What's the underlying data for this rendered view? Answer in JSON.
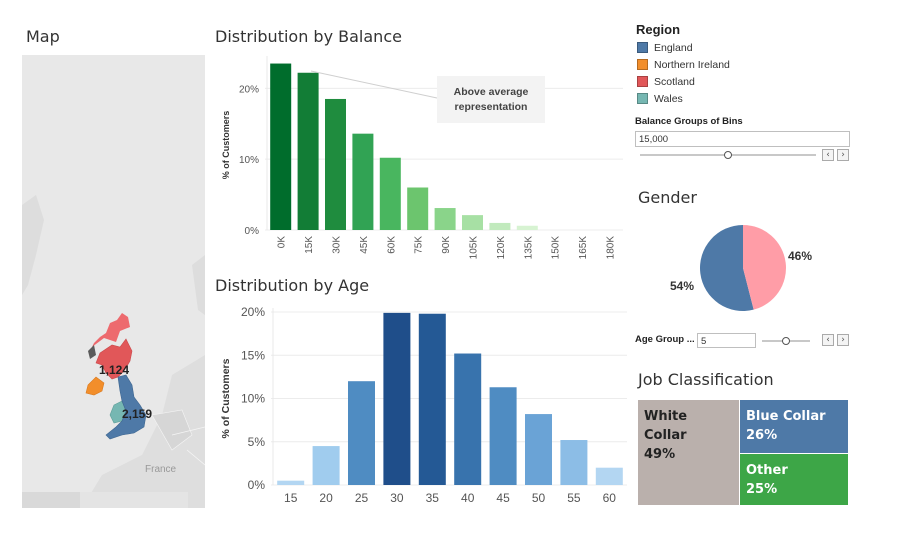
{
  "map": {
    "title": "Map",
    "country_label": "France",
    "labels": {
      "scotland": "1,124",
      "england": "2,159"
    }
  },
  "balance_chart": {
    "title": "Distribution by Balance",
    "annotation_line1": "Above average",
    "annotation_line2": "representation"
  },
  "age_chart": {
    "title": "Distribution by Age"
  },
  "legend": {
    "title": "Region",
    "items": [
      {
        "label": "England",
        "color": "#4e79a7"
      },
      {
        "label": "Northern Ireland",
        "color": "#f28e2b"
      },
      {
        "label": "Scotland",
        "color": "#e15759"
      },
      {
        "label": "Wales",
        "color": "#76b7b2"
      }
    ]
  },
  "balance_bins": {
    "label": "Balance Groups of Bins",
    "value": "15,000",
    "slider_level": 0.5
  },
  "gender": {
    "title": "Gender",
    "slices": [
      {
        "value": 54,
        "label": "54%",
        "color": "#4e79a7"
      },
      {
        "value": 46,
        "label": "46%",
        "color": "#ff9da7"
      }
    ]
  },
  "age_group": {
    "label": "Age Group ...",
    "value": "5",
    "slider_level": 0.5
  },
  "job": {
    "title": "Job Classification",
    "tiles": [
      {
        "name": "White Collar",
        "pct": "49%",
        "color": "#bab0ac"
      },
      {
        "name": "Blue Collar",
        "pct": "26%",
        "color": "#4e79a7"
      },
      {
        "name": "Other",
        "pct": "25%",
        "color": "#3da647"
      }
    ]
  },
  "chart_data": [
    {
      "type": "bar",
      "title": "Distribution by Balance",
      "ylabel": "% of Customers",
      "categories": [
        "0K",
        "15K",
        "30K",
        "45K",
        "60K",
        "75K",
        "90K",
        "105K",
        "120K",
        "135K",
        "150K",
        "165K",
        "180K"
      ],
      "values": [
        23.5,
        22.2,
        18.5,
        13.6,
        10.2,
        6.0,
        3.1,
        2.1,
        1.0,
        0.6,
        0,
        0,
        0
      ],
      "yticks": [
        0,
        10,
        20
      ],
      "ytick_labels": [
        "0%",
        "10%",
        "20%"
      ],
      "ylim": [
        0,
        24
      ],
      "grid": true,
      "colors": [
        "#006d2c",
        "#127d36",
        "#1f8c3e",
        "#31a354",
        "#49b65f",
        "#6cc56e",
        "#8ad48a",
        "#a7e0a4",
        "#c1eabd",
        "#d7f3d2",
        "#e5f5e0",
        "#e5f5e0",
        "#e5f5e0"
      ]
    },
    {
      "type": "bar",
      "title": "Distribution by Age",
      "ylabel": "% of Customers",
      "categories": [
        "15",
        "20",
        "25",
        "30",
        "35",
        "40",
        "45",
        "50",
        "55",
        "60"
      ],
      "values": [
        0.5,
        4.5,
        12.0,
        19.9,
        19.8,
        15.2,
        11.3,
        8.2,
        5.2,
        2.0
      ],
      "yticks": [
        0,
        5,
        10,
        15,
        20
      ],
      "ytick_labels": [
        "0%",
        "5%",
        "10%",
        "15%",
        "20%"
      ],
      "ylim": [
        0,
        20
      ],
      "grid": true,
      "colors": [
        "#b3d6f2",
        "#a0ccee",
        "#4f8cc2",
        "#1f4e8a",
        "#245995",
        "#3873ad",
        "#4f8cc2",
        "#6aa3d6",
        "#8cbde6",
        "#b3d6f2"
      ]
    },
    {
      "type": "pie",
      "title": "Gender",
      "values": [
        54,
        46
      ],
      "labels": [
        "54%",
        "46%"
      ]
    }
  ]
}
